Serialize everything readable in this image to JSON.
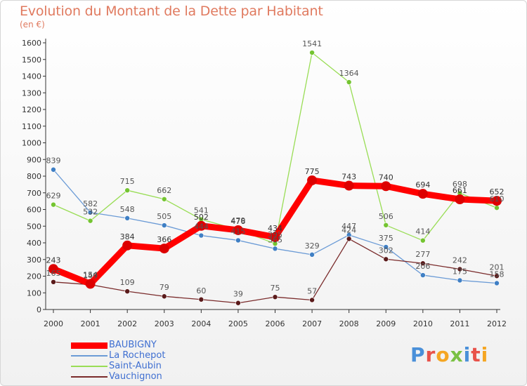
{
  "header": {
    "title": "Evolution du Montant de la Dette par Habitant",
    "subtitle": "(en €)"
  },
  "brand": {
    "letters": [
      "P",
      "r",
      "o",
      "x",
      "i",
      "t",
      "i"
    ]
  },
  "colors": {
    "title": "#e07a5f",
    "axis": "#333333",
    "grid": "#d9d9d9",
    "brand": [
      "#4a90d9",
      "#e8524a",
      "#f5a623",
      "#7ac143",
      "#4a90d9",
      "#e8524a",
      "#f5a623"
    ]
  },
  "chart_data": {
    "type": "line",
    "title": "Evolution du Montant de la Dette par Habitant",
    "subtitle": "(en €)",
    "x": [
      "2000",
      "2001",
      "2002",
      "2003",
      "2004",
      "2005",
      "2006",
      "2007",
      "2008",
      "2009",
      "2010",
      "2011",
      "2012"
    ],
    "ylim": [
      0,
      1600
    ],
    "yticks": [
      0,
      100,
      200,
      300,
      400,
      500,
      600,
      700,
      800,
      900,
      1000,
      1100,
      1200,
      1300,
      1400,
      1500,
      1600
    ],
    "grid": false,
    "legend_position": "bottom-left",
    "series": [
      {
        "name": "BAUBIGNY",
        "color": "#ff0000",
        "marker": "#dd0000",
        "stroke": 9,
        "radius": 7,
        "text": "#333333",
        "values": [
          243,
          154,
          384,
          366,
          502,
          476,
          434,
          775,
          743,
          740,
          694,
          661,
          652
        ]
      },
      {
        "name": "La Rochepot",
        "color": "#6b9bd6",
        "marker": "#3f7fc4",
        "stroke": 1.3,
        "radius": 3.5,
        "text": "#555555",
        "values": [
          839,
          582,
          548,
          505,
          444,
          415,
          365,
          329,
          447,
          375,
          206,
          175,
          158
        ]
      },
      {
        "name": "Saint-Aubin",
        "color": "#99dd55",
        "marker": "#74c431",
        "stroke": 1.3,
        "radius": 3.5,
        "text": "#555555",
        "values": [
          629,
          532,
          715,
          662,
          541,
          479,
          395,
          1541,
          1364,
          506,
          414,
          698,
          610
        ]
      },
      {
        "name": "Vauchignon",
        "color": "#7a2b2b",
        "marker": "#5a1a1a",
        "stroke": 1.3,
        "radius": 3.5,
        "text": "#555555",
        "values": [
          165,
          149,
          109,
          79,
          60,
          39,
          75,
          57,
          424,
          302,
          277,
          242,
          201
        ]
      }
    ]
  }
}
